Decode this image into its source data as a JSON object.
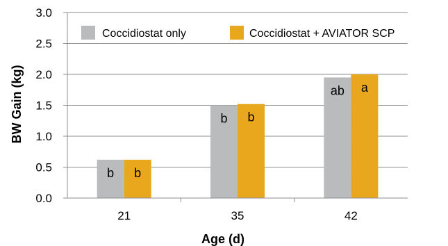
{
  "chart_data": {
    "type": "bar",
    "xlabel": "Age (d)",
    "ylabel": "BW Gain (kg)",
    "ylim": [
      0,
      3.0
    ],
    "yticks": [
      "0.0",
      "0.5",
      "1.0",
      "1.5",
      "2.0",
      "2.5",
      "3.0"
    ],
    "categories": [
      "21",
      "35",
      "42"
    ],
    "grid": true,
    "legend_position": "top",
    "series": [
      {
        "name": "Coccidiostat only",
        "color": "#b9bbbd",
        "values": [
          0.62,
          1.5,
          1.95
        ],
        "labels": [
          "b",
          "b",
          "ab"
        ]
      },
      {
        "name": "Coccidiostat + AVIATOR SCP",
        "color": "#e8a71c",
        "values": [
          0.62,
          1.52,
          2.0
        ],
        "labels": [
          "b",
          "b",
          "a"
        ]
      }
    ]
  }
}
